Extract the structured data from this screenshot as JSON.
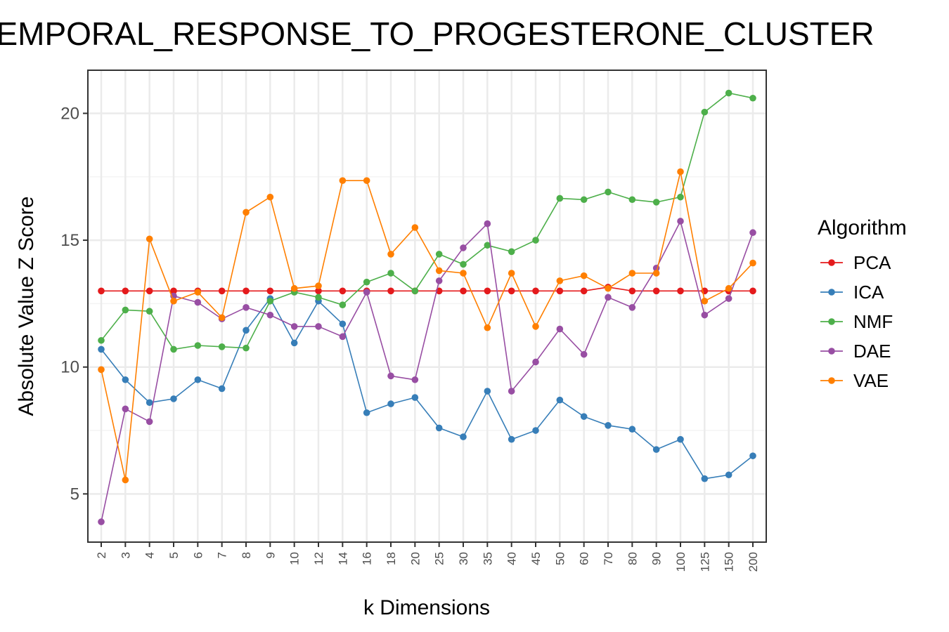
{
  "chart_data": {
    "type": "line",
    "title": "TEMPORAL_RESPONSE_TO_PROGESTERONE_CLUSTER",
    "xlabel": "k Dimensions",
    "ylabel": "Absolute Value Z Score",
    "x_categories": [
      "2",
      "3",
      "4",
      "5",
      "6",
      "7",
      "8",
      "9",
      "10",
      "12",
      "14",
      "16",
      "18",
      "20",
      "25",
      "30",
      "35",
      "40",
      "45",
      "50",
      "60",
      "70",
      "80",
      "90",
      "100",
      "125",
      "150",
      "200"
    ],
    "ylim": [
      3.1,
      21.7
    ],
    "y_ticks": [
      5,
      10,
      15,
      20
    ],
    "grid": true,
    "legend_title": "Algorithm",
    "legend_position": "right",
    "series": [
      {
        "name": "PCA",
        "color": "#E41A1C",
        "values": [
          13.0,
          13.0,
          13.0,
          13.0,
          13.0,
          13.0,
          13.0,
          13.0,
          13.0,
          13.0,
          13.0,
          13.0,
          13.0,
          13.0,
          13.0,
          13.0,
          13.0,
          13.0,
          13.0,
          13.0,
          13.0,
          13.15,
          13.0,
          13.0,
          13.0,
          13.0,
          13.0,
          13.0
        ]
      },
      {
        "name": "ICA",
        "color": "#377EB8",
        "values": [
          10.7,
          9.5,
          8.6,
          8.75,
          9.5,
          9.15,
          11.45,
          12.7,
          10.95,
          12.6,
          11.7,
          8.2,
          8.55,
          8.8,
          7.6,
          7.25,
          9.05,
          7.15,
          7.5,
          8.7,
          8.05,
          7.7,
          7.55,
          6.75,
          7.15,
          5.6,
          5.75,
          6.5
        ]
      },
      {
        "name": "NMF",
        "color": "#4DAF4A",
        "values": [
          11.05,
          12.25,
          12.2,
          10.7,
          10.85,
          10.8,
          10.75,
          12.6,
          12.95,
          12.75,
          12.45,
          13.35,
          13.7,
          13.0,
          14.45,
          14.05,
          14.8,
          14.55,
          15.0,
          16.65,
          16.6,
          16.9,
          16.6,
          16.5,
          16.7,
          20.05,
          20.8,
          20.6
        ]
      },
      {
        "name": "DAE",
        "color": "#984EA3",
        "values": [
          3.9,
          8.35,
          7.85,
          12.8,
          12.55,
          11.9,
          12.35,
          12.05,
          11.6,
          11.6,
          11.2,
          12.95,
          9.65,
          9.5,
          13.4,
          14.7,
          15.65,
          9.05,
          10.2,
          11.5,
          10.5,
          12.75,
          12.35,
          13.9,
          15.75,
          12.05,
          12.7,
          15.3
        ]
      },
      {
        "name": "VAE",
        "color": "#FF7F00",
        "values": [
          9.9,
          5.55,
          15.05,
          12.6,
          12.95,
          11.95,
          16.1,
          16.7,
          13.1,
          13.2,
          17.35,
          17.35,
          14.45,
          15.5,
          13.8,
          13.7,
          11.55,
          13.7,
          11.6,
          13.4,
          13.6,
          13.1,
          13.7,
          13.7,
          17.7,
          12.6,
          13.1,
          14.1
        ]
      }
    ]
  }
}
